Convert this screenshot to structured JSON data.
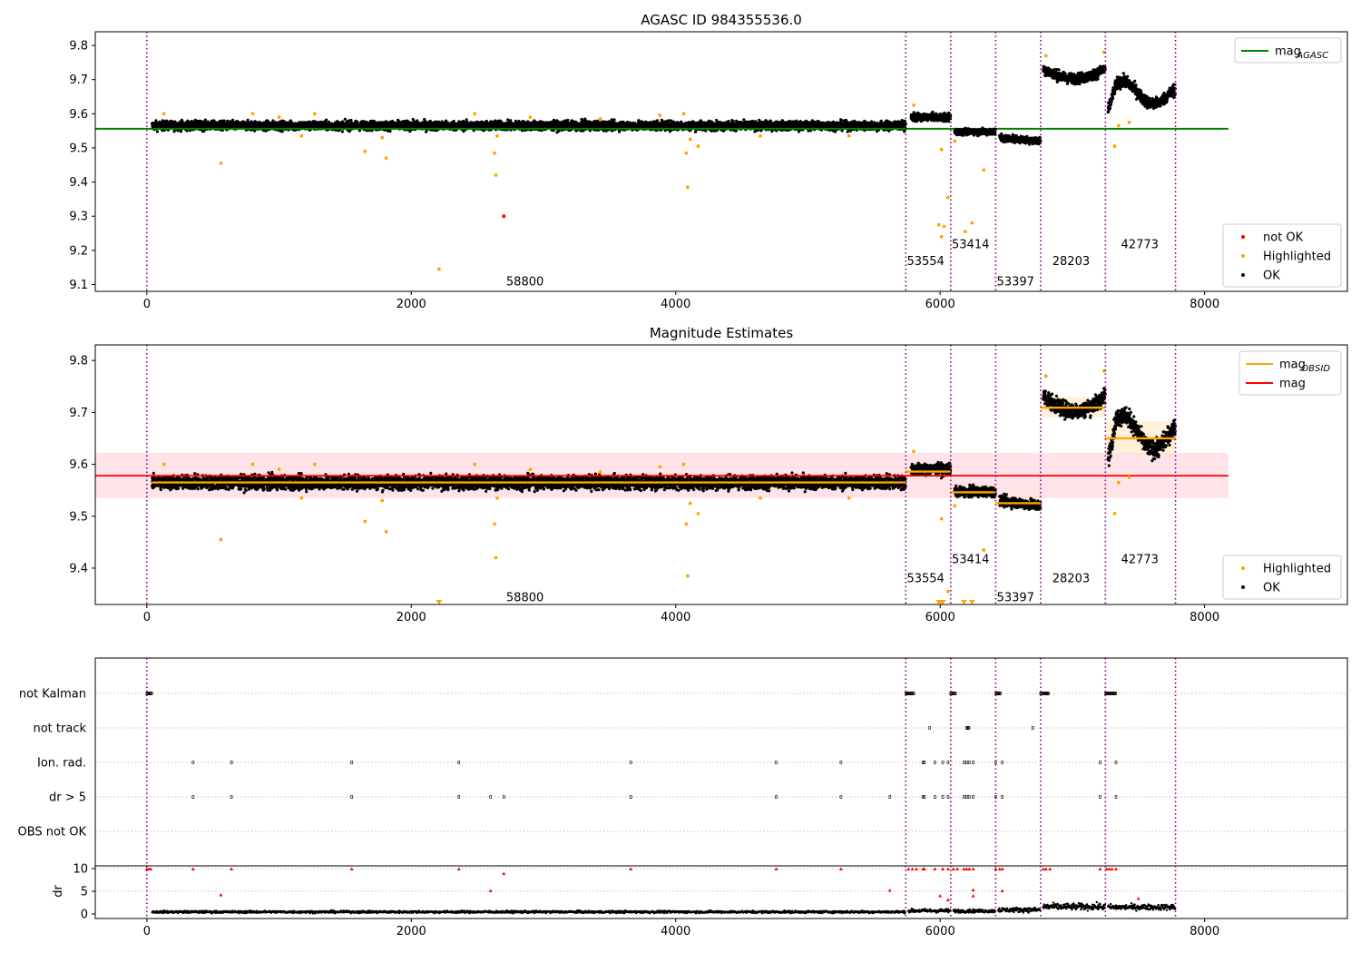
{
  "figure_title": "AGASC ID 984355536.0",
  "colors": {
    "agasc_line": "#008000",
    "obsid_line": "#ffa500",
    "mag_line": "#ff0000",
    "mag_band": "#ffc0cb",
    "highlighted": "#ffa500",
    "not_ok": "#ff0000",
    "ok": "#000000",
    "obsid_boundary": "#800080",
    "boundary_accent": "#0000ff"
  },
  "chart_data": [
    {
      "type": "scatter",
      "title": "AGASC ID 984355536.0",
      "xlim": [
        -390,
        9080
      ],
      "ylim": [
        9.08,
        9.84
      ],
      "xticks": [
        0,
        2000,
        4000,
        6000,
        8000
      ],
      "yticks": [
        9.1,
        9.2,
        9.3,
        9.4,
        9.5,
        9.6,
        9.7,
        9.8
      ],
      "grid": false,
      "legend_upper": {
        "placement": "top-right",
        "entries": [
          {
            "label": "mag",
            "sub": "AGASC",
            "kind": "line",
            "color": "#008000"
          }
        ]
      },
      "legend_lower": {
        "placement": "bottom-right",
        "entries": [
          {
            "label": "not OK",
            "kind": "dot",
            "color": "#ff0000"
          },
          {
            "label": "Highlighted",
            "kind": "dot",
            "color": "#ffa500"
          },
          {
            "label": "OK",
            "kind": "dot",
            "color": "#000000"
          }
        ]
      },
      "hlines": [
        {
          "name": "mag_AGASC",
          "y": 9.556,
          "x0": -390,
          "x1": 8180,
          "color": "#008000"
        }
      ],
      "obsid_boundaries": [
        0,
        5740,
        6080,
        6420,
        6760,
        7250,
        7780
      ],
      "obsid_labels": [
        {
          "text": "58800",
          "x": 2860,
          "y": 9.11
        },
        {
          "text": "53554",
          "x": 5890,
          "y": 9.17
        },
        {
          "text": "53414",
          "x": 6230,
          "y": 9.22
        },
        {
          "text": "53397",
          "x": 6570,
          "y": 9.11
        },
        {
          "text": "28203",
          "x": 6990,
          "y": 9.17
        },
        {
          "text": "42773",
          "x": 7510,
          "y": 9.22
        }
      ],
      "segments": [
        {
          "x0": 40,
          "x1": 5740,
          "mean": 9.565,
          "spread": 0.013,
          "amp": 0,
          "shape": "flat"
        },
        {
          "x0": 5780,
          "x1": 6080,
          "mean": 9.59,
          "spread": 0.011,
          "amp": 0,
          "shape": "flat"
        },
        {
          "x0": 6110,
          "x1": 6420,
          "mean": 9.547,
          "spread": 0.009,
          "amp": 0,
          "shape": "flat"
        },
        {
          "x0": 6450,
          "x1": 6760,
          "mean": 9.525,
          "spread": 0.01,
          "amp": 0.01,
          "shape": "ramp"
        },
        {
          "x0": 6780,
          "x1": 7250,
          "mean": 9.712,
          "spread": 0.015,
          "amp": 0.03,
          "shape": "bowl"
        },
        {
          "x0": 7270,
          "x1": 7780,
          "mean": 9.658,
          "spread": 0.017,
          "amp": 0.04,
          "shape": "wave"
        }
      ],
      "highlighted_points": [
        [
          560,
          9.455
        ],
        [
          1650,
          9.49
        ],
        [
          1810,
          9.47
        ],
        [
          1780,
          9.53
        ],
        [
          1170,
          9.535
        ],
        [
          2210,
          9.145
        ],
        [
          2630,
          9.485
        ],
        [
          2640,
          9.42
        ],
        [
          2650,
          9.535
        ],
        [
          4080,
          9.485
        ],
        [
          4090,
          9.385
        ],
        [
          4110,
          9.525
        ],
        [
          4170,
          9.505
        ],
        [
          4060,
          9.6
        ],
        [
          3880,
          9.595
        ],
        [
          1270,
          9.6
        ],
        [
          800,
          9.6
        ],
        [
          130,
          9.6
        ],
        [
          2480,
          9.6
        ],
        [
          3430,
          9.585
        ],
        [
          2900,
          9.59
        ],
        [
          5800,
          9.625
        ],
        [
          6010,
          9.495
        ],
        [
          5990,
          9.275
        ],
        [
          6010,
          9.24
        ],
        [
          6030,
          9.27
        ],
        [
          6060,
          9.355
        ],
        [
          6110,
          9.52
        ],
        [
          6190,
          9.255
        ],
        [
          6240,
          9.28
        ],
        [
          6330,
          9.435
        ],
        [
          6800,
          9.77
        ],
        [
          7240,
          9.78
        ],
        [
          7320,
          9.505
        ],
        [
          7350,
          9.565
        ],
        [
          7430,
          9.575
        ],
        [
          1000,
          9.59
        ],
        [
          4640,
          9.535
        ],
        [
          5310,
          9.535
        ]
      ],
      "not_ok_points": [
        [
          2700,
          9.3
        ]
      ],
      "note_visible_text": [
        "mag",
        "AGASC"
      ]
    },
    {
      "type": "scatter",
      "title": "Magnitude Estimates",
      "xlim": [
        -390,
        9080
      ],
      "ylim": [
        9.33,
        9.83
      ],
      "xticks": [
        0,
        2000,
        4000,
        6000,
        8000
      ],
      "yticks": [
        9.4,
        9.5,
        9.6,
        9.7,
        9.8
      ],
      "grid": false,
      "legend_upper": {
        "placement": "top-right",
        "entries": [
          {
            "label": "mag",
            "sub": "OBSID",
            "kind": "line",
            "color": "#ffa500"
          },
          {
            "label": "mag",
            "kind": "line",
            "color": "#ff0000"
          }
        ]
      },
      "legend_lower": {
        "placement": "bottom-right",
        "entries": [
          {
            "label": "Highlighted",
            "kind": "dot",
            "color": "#ffa500"
          },
          {
            "label": "OK",
            "kind": "dot",
            "color": "#000000"
          }
        ]
      },
      "mag": {
        "y": 9.578,
        "band": [
          9.535,
          9.622
        ],
        "x0": -390,
        "x1": 8180
      },
      "obsid_mags": [
        {
          "x0": 40,
          "x1": 5740,
          "y": 9.565,
          "band": [
            9.55,
            9.58
          ]
        },
        {
          "x0": 5740,
          "x1": 6080,
          "y": 9.586,
          "band": [
            9.575,
            9.6
          ]
        },
        {
          "x0": 6080,
          "x1": 6420,
          "y": 9.546,
          "band": [
            9.535,
            9.56
          ]
        },
        {
          "x0": 6420,
          "x1": 6760,
          "y": 9.525,
          "band": [
            9.515,
            9.537
          ]
        },
        {
          "x0": 6760,
          "x1": 7250,
          "y": 9.709,
          "band": [
            9.69,
            9.73
          ]
        },
        {
          "x0": 7250,
          "x1": 7780,
          "y": 9.65,
          "band": [
            9.62,
            9.683
          ]
        }
      ],
      "obsid_boundaries": [
        0,
        5740,
        6080,
        6420,
        6760,
        7250,
        7780
      ],
      "obsid_labels": [
        {
          "text": "58800",
          "x": 2860,
          "y": 9.345
        },
        {
          "text": "53554",
          "x": 5890,
          "y": 9.382
        },
        {
          "text": "53414",
          "x": 6230,
          "y": 9.418
        },
        {
          "text": "53397",
          "x": 6570,
          "y": 9.345
        },
        {
          "text": "28203",
          "x": 6990,
          "y": 9.382
        },
        {
          "text": "42773",
          "x": 7510,
          "y": 9.418
        }
      ],
      "below_range_markers": [
        2210,
        5990,
        6010,
        6020,
        6180,
        6240
      ]
    },
    {
      "type": "scatter",
      "title": "",
      "xlim": [
        -390,
        9080
      ],
      "flag_rows": [
        "not Kalman",
        "not track",
        "Ion. rad.",
        "dr > 5",
        "OBS not OK"
      ],
      "flags": {
        "not Kalman": [
          [
            0,
            40
          ],
          [
            5740,
            5800
          ],
          [
            6080,
            6120
          ],
          [
            6420,
            6460
          ],
          [
            6760,
            6820
          ],
          [
            7250,
            7330
          ]
        ],
        "not track": [
          [
            5920,
            5925
          ],
          [
            6200,
            6220
          ],
          [
            6700,
            6705
          ]
        ],
        "Ion. rad.": [
          350,
          640,
          1550,
          2360,
          3660,
          4760,
          5250,
          5870,
          5880,
          5960,
          6020,
          6060,
          6180,
          6200,
          6220,
          6250,
          6420,
          6470,
          7210,
          7330
        ],
        "dr > 5": [
          350,
          640,
          1550,
          2360,
          2600,
          2700,
          3660,
          4760,
          5250,
          5620,
          5870,
          5880,
          5960,
          6020,
          6060,
          6180,
          6200,
          6220,
          6250,
          6420,
          6470,
          7210,
          7330
        ],
        "OBS not OK": []
      },
      "dr_panel": {
        "ylabel": "dr",
        "ylim": [
          -1,
          10.6
        ],
        "yticks": [
          0,
          5,
          10
        ],
        "xticks": [
          0,
          2000,
          4000,
          6000,
          8000
        ],
        "segments": [
          {
            "x0": 40,
            "x1": 5740,
            "mean": 0.45,
            "spread": 0.25
          },
          {
            "x0": 5760,
            "x1": 6080,
            "mean": 0.7,
            "spread": 0.4
          },
          {
            "x0": 6100,
            "x1": 6420,
            "mean": 0.65,
            "spread": 0.35
          },
          {
            "x0": 6440,
            "x1": 6760,
            "mean": 0.9,
            "spread": 0.5
          },
          {
            "x0": 6780,
            "x1": 7250,
            "mean": 1.6,
            "spread": 0.7
          },
          {
            "x0": 7270,
            "x1": 7780,
            "mean": 1.5,
            "spread": 0.6
          }
        ],
        "red_points": [
          [
            0,
            9.9
          ],
          [
            15,
            9.9
          ],
          [
            30,
            9.9
          ],
          [
            350,
            9.9
          ],
          [
            640,
            9.9
          ],
          [
            1550,
            9.9
          ],
          [
            2360,
            9.9
          ],
          [
            3660,
            9.9
          ],
          [
            4760,
            9.9
          ],
          [
            5250,
            9.9
          ],
          [
            5760,
            9.9
          ],
          [
            5790,
            9.9
          ],
          [
            5820,
            9.9
          ],
          [
            5870,
            9.9
          ],
          [
            5880,
            9.9
          ],
          [
            5960,
            9.9
          ],
          [
            6020,
            9.9
          ],
          [
            6060,
            9.9
          ],
          [
            6100,
            9.9
          ],
          [
            6130,
            9.9
          ],
          [
            6180,
            9.9
          ],
          [
            6200,
            9.9
          ],
          [
            6220,
            9.9
          ],
          [
            6250,
            9.9
          ],
          [
            6420,
            9.9
          ],
          [
            6450,
            9.9
          ],
          [
            6470,
            9.9
          ],
          [
            6780,
            9.9
          ],
          [
            6800,
            9.9
          ],
          [
            6830,
            9.9
          ],
          [
            7210,
            9.9
          ],
          [
            7260,
            9.9
          ],
          [
            7280,
            9.9
          ],
          [
            7300,
            9.9
          ],
          [
            7330,
            9.9
          ],
          [
            560,
            4.2
          ],
          [
            2600,
            5.1
          ],
          [
            2700,
            8.9
          ],
          [
            5620,
            5.2
          ],
          [
            6000,
            4.0
          ],
          [
            6060,
            3.1
          ],
          [
            6250,
            5.3
          ],
          [
            6250,
            4.0
          ],
          [
            6470,
            5.1
          ],
          [
            7500,
            3.4
          ]
        ]
      }
    }
  ]
}
